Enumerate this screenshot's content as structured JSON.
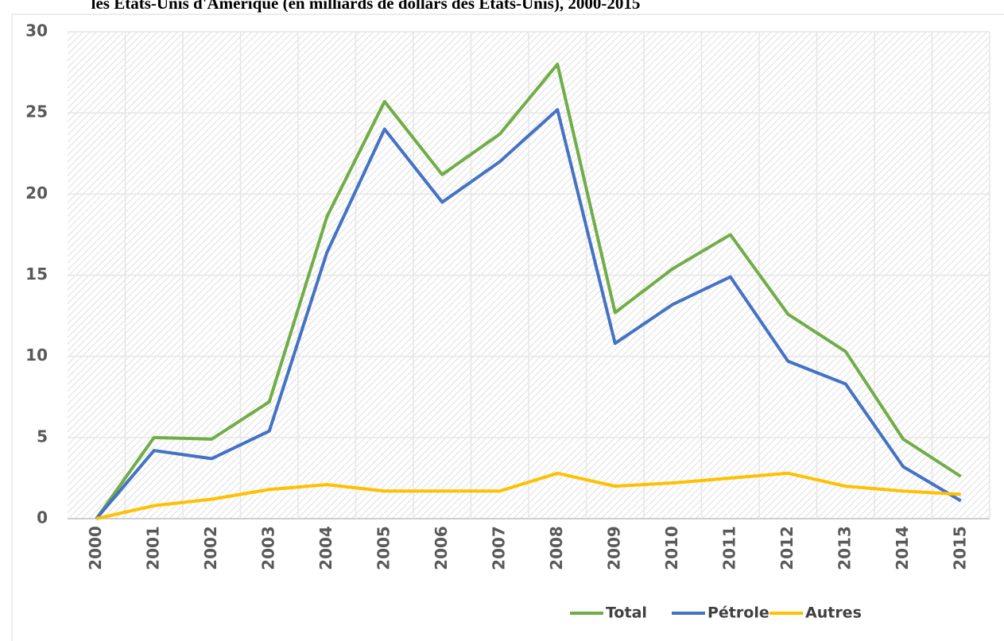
{
  "chart_data": {
    "type": "line",
    "title": "les Etats-Unis d'Amérique (en milliards de dollars des Etats-Unis), 2000-2015",
    "categories": [
      "2000",
      "2001",
      "2002",
      "2003",
      "2004",
      "2005",
      "2006",
      "2007",
      "2008",
      "2009",
      "2010",
      "2011",
      "2012",
      "2013",
      "2014",
      "2015"
    ],
    "series": [
      {
        "name": "Total",
        "color": "#70ad47",
        "values": [
          0,
          5.0,
          4.9,
          7.2,
          18.6,
          25.7,
          21.2,
          23.7,
          28.0,
          12.7,
          15.4,
          17.5,
          12.6,
          10.3,
          4.9,
          2.6
        ]
      },
      {
        "name": "Pétrole",
        "color": "#4472c4",
        "values": [
          0,
          4.2,
          3.7,
          5.4,
          16.4,
          24.0,
          19.5,
          22.0,
          25.2,
          10.8,
          13.2,
          14.9,
          9.7,
          8.3,
          3.2,
          1.1
        ]
      },
      {
        "name": "Autres",
        "color": "#ffc000",
        "values": [
          0,
          0.8,
          1.2,
          1.8,
          2.1,
          1.7,
          1.7,
          1.7,
          2.8,
          2.0,
          2.2,
          2.5,
          2.8,
          2.0,
          1.7,
          1.5
        ]
      }
    ],
    "ylim": [
      0,
      30
    ],
    "yticks": [
      0,
      5,
      10,
      15,
      20,
      25,
      30
    ],
    "grid": true,
    "legend": "bottom"
  }
}
